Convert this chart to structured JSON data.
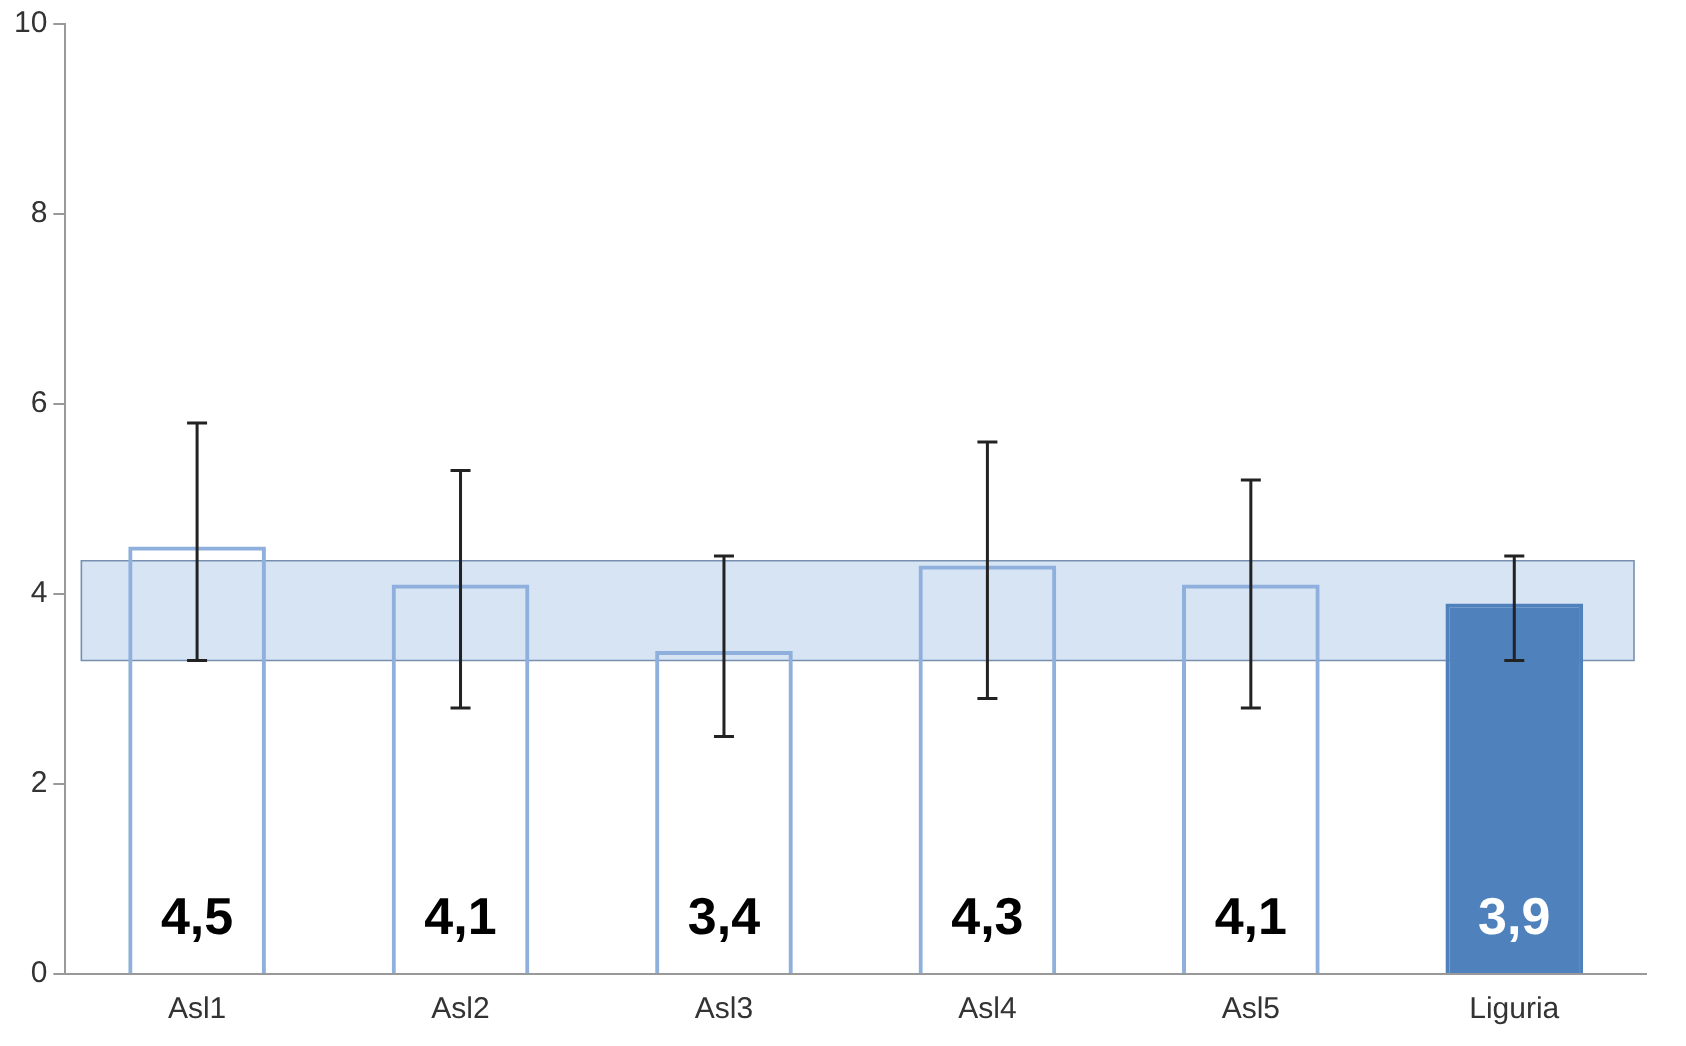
{
  "chart_data": {
    "type": "bar",
    "categories": [
      "Asl1",
      "Asl2",
      "Asl3",
      "Asl4",
      "Asl5",
      "Liguria"
    ],
    "values": [
      4.5,
      4.1,
      3.4,
      4.3,
      4.1,
      3.9
    ],
    "value_labels": [
      "4,5",
      "4,1",
      "3,4",
      "4,3",
      "4,1",
      "3,9"
    ],
    "colors": [
      "#8fb0dc",
      "#8fb0dc",
      "#8fb0dc",
      "#8fb0dc",
      "#8fb0dc",
      "#4f81bd"
    ],
    "errors": [
      [
        3.3,
        5.8
      ],
      [
        2.8,
        5.3
      ],
      [
        2.5,
        4.4
      ],
      [
        2.9,
        5.6
      ],
      [
        2.8,
        5.2
      ],
      [
        3.3,
        4.4
      ]
    ],
    "bands": [
      {
        "axis": "y",
        "from": 3.3,
        "to": 4.35,
        "color": "#c6d9f0"
      }
    ],
    "ylim": [
      0,
      10
    ],
    "yticks": [
      0,
      2,
      4,
      6,
      8,
      10
    ],
    "grid": false,
    "legend": false
  }
}
